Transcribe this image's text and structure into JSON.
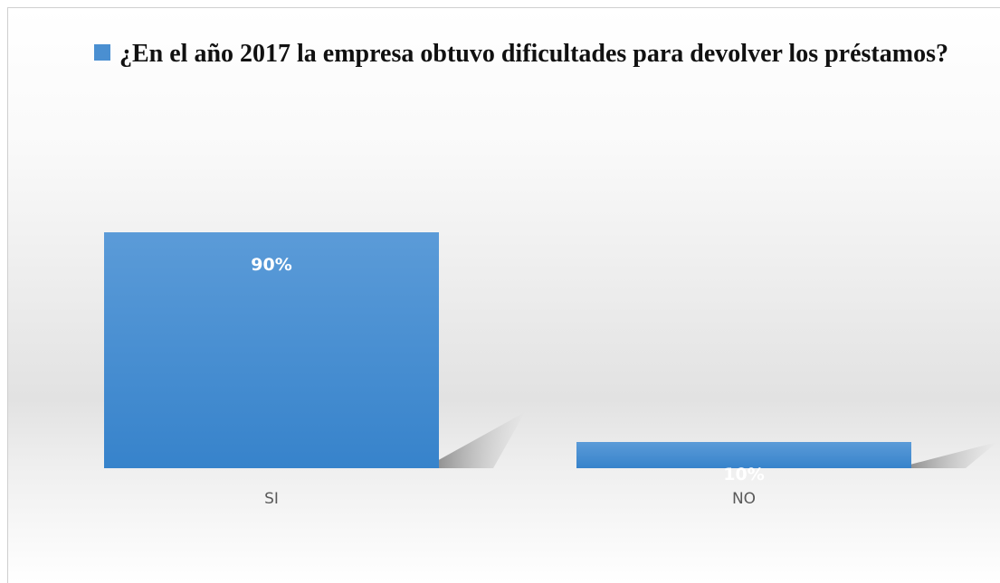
{
  "chart_data": {
    "type": "bar",
    "title": "",
    "xlabel": "",
    "ylabel": "",
    "categories": [
      "SI",
      "NO"
    ],
    "series": [
      {
        "name": "¿En el año 2017 la empresa obtuvo dificultades para devolver los préstamos?",
        "values": [
          90,
          10
        ],
        "color": "#4a8fd1"
      }
    ],
    "data_labels": [
      "90%",
      "10%"
    ],
    "ylim": [
      0,
      100
    ],
    "legend": "top-left",
    "grid": false
  }
}
